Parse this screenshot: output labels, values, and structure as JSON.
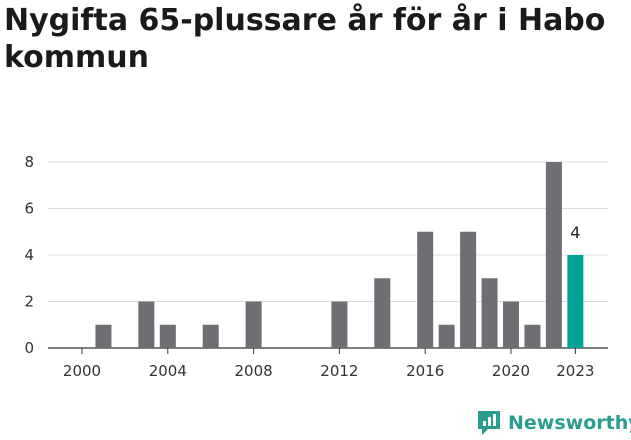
{
  "chart_data": {
    "type": "bar",
    "title": "Nygifta 65-plussare år för år i Habo kommun",
    "x": [
      2000,
      2001,
      2002,
      2003,
      2004,
      2005,
      2006,
      2007,
      2008,
      2009,
      2010,
      2011,
      2012,
      2013,
      2014,
      2015,
      2016,
      2017,
      2018,
      2019,
      2020,
      2021,
      2022,
      2023
    ],
    "values": [
      0,
      1,
      0,
      2,
      1,
      0,
      1,
      0,
      2,
      0,
      0,
      0,
      2,
      0,
      3,
      0,
      5,
      1,
      5,
      3,
      2,
      1,
      8,
      4
    ],
    "x_ticks": [
      "2000",
      "2004",
      "2008",
      "2012",
      "2016",
      "2020",
      "2023"
    ],
    "y_ticks": [
      "0",
      "2",
      "4",
      "6",
      "8"
    ],
    "ylim": [
      0,
      8
    ],
    "grid": true,
    "highlight": {
      "year": 2023,
      "label": "4"
    },
    "colors": {
      "bar": "#6e6e73",
      "highlight": "#00a398",
      "grid": "#dddddd"
    }
  },
  "brand": {
    "name": "Newsworthy",
    "icon": "newsworthy-logo-icon"
  }
}
